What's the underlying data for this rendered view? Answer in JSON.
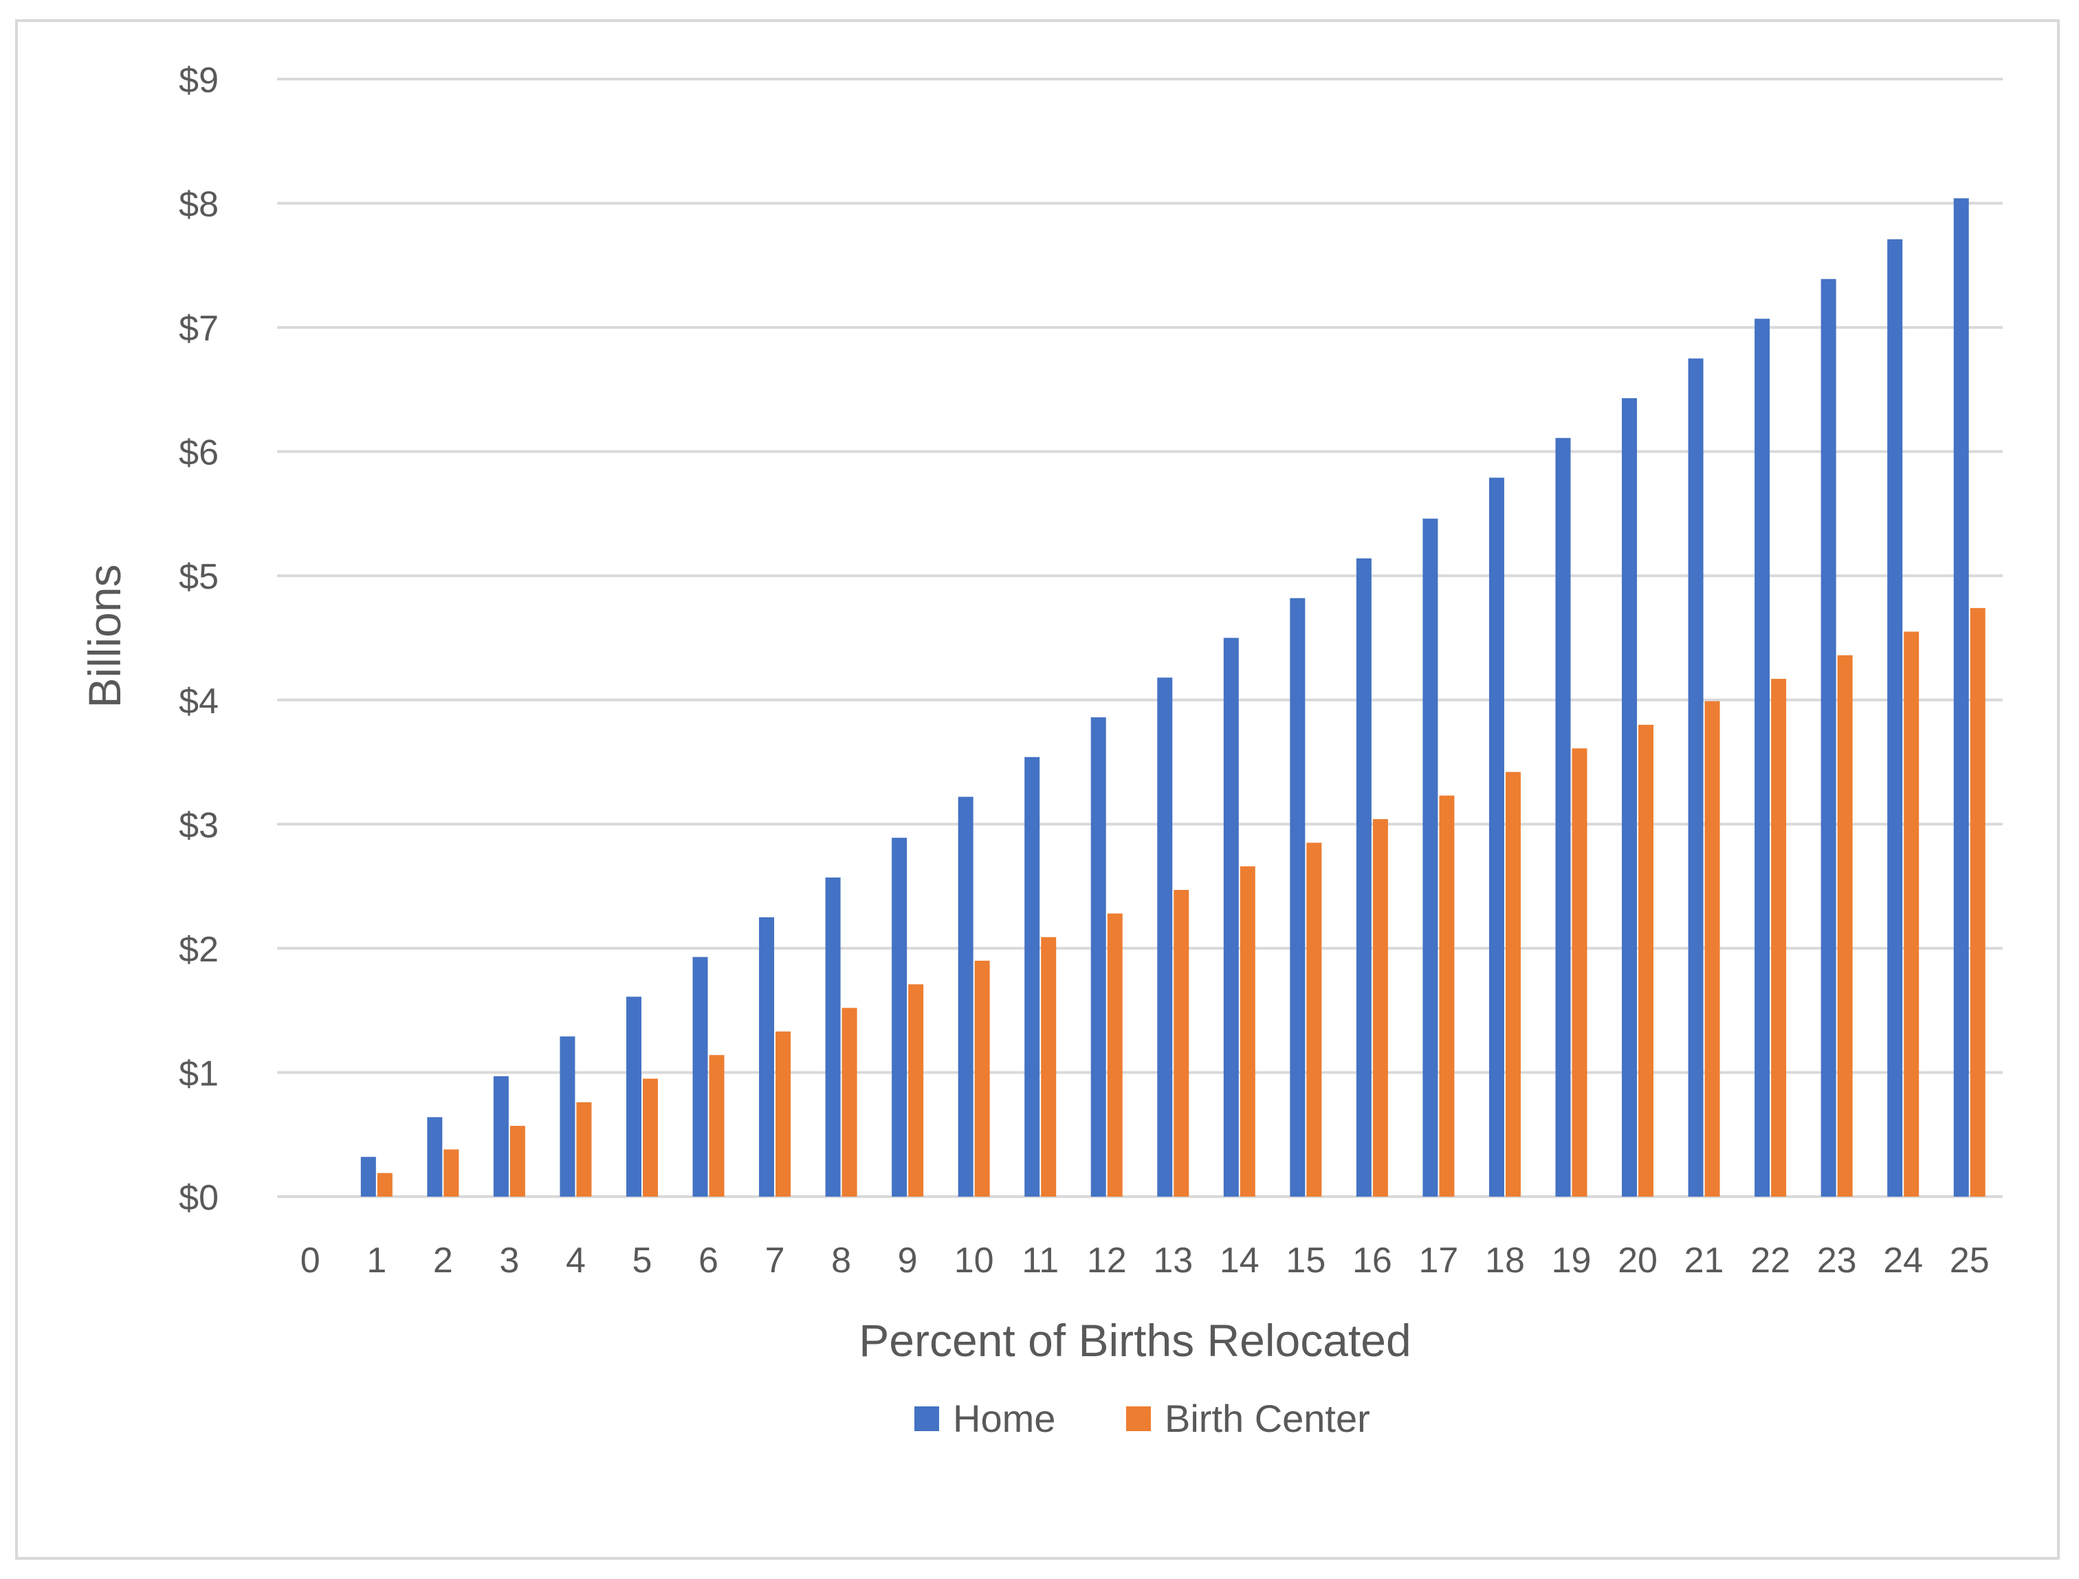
{
  "chart_data": {
    "type": "bar",
    "title": "",
    "xlabel": "Percent of Births Relocated",
    "ylabel": "Billions",
    "ylim": [
      0,
      9
    ],
    "yticks": [
      "$0",
      "$1",
      "$2",
      "$3",
      "$4",
      "$5",
      "$6",
      "$7",
      "$8",
      "$9"
    ],
    "categories": [
      "0",
      "1",
      "2",
      "3",
      "4",
      "5",
      "6",
      "7",
      "8",
      "9",
      "10",
      "11",
      "12",
      "13",
      "14",
      "15",
      "16",
      "17",
      "18",
      "19",
      "20",
      "21",
      "22",
      "23",
      "24",
      "25"
    ],
    "series": [
      {
        "name": "Home",
        "color": "#4472c4",
        "values": [
          0,
          0.32,
          0.64,
          0.97,
          1.29,
          1.61,
          1.93,
          2.25,
          2.57,
          2.89,
          3.22,
          3.54,
          3.86,
          4.18,
          4.5,
          4.82,
          5.14,
          5.46,
          5.79,
          6.11,
          6.43,
          6.75,
          7.07,
          7.39,
          7.71,
          8.04
        ]
      },
      {
        "name": "Birth Center",
        "color": "#ed7d31",
        "values": [
          0,
          0.19,
          0.38,
          0.57,
          0.76,
          0.95,
          1.14,
          1.33,
          1.52,
          1.71,
          1.9,
          2.09,
          2.28,
          2.47,
          2.66,
          2.85,
          3.04,
          3.23,
          3.42,
          3.61,
          3.8,
          3.99,
          4.17,
          4.36,
          4.55,
          4.74
        ]
      }
    ],
    "grid": true,
    "gridColor": "#d9d9d9",
    "legend": "bottom"
  }
}
